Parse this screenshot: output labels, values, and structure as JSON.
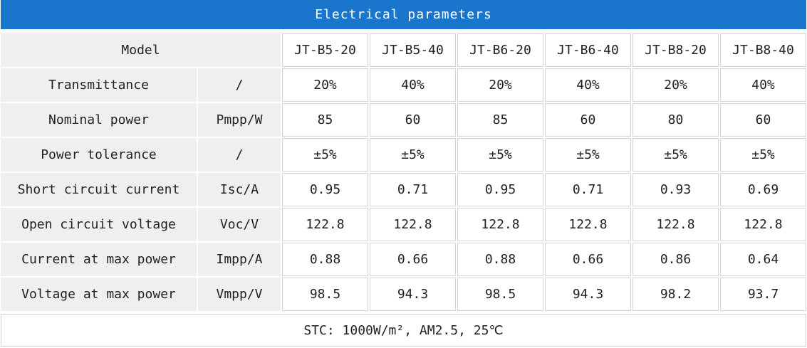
{
  "title": "Electrical parameters",
  "header": {
    "label": "Model",
    "models": [
      "JT-B5-20",
      "JT-B5-40",
      "JT-B6-20",
      "JT-B6-40",
      "JT-B8-20",
      "JT-B8-40"
    ]
  },
  "rows": [
    {
      "label": "Transmittance",
      "unit": "/",
      "values": [
        "20%",
        "40%",
        "20%",
        "40%",
        "20%",
        "40%"
      ]
    },
    {
      "label": "Nominal power",
      "unit": "Pmpp/W",
      "values": [
        "85",
        "60",
        "85",
        "60",
        "80",
        "60"
      ]
    },
    {
      "label": "Power tolerance",
      "unit": "/",
      "values": [
        "±5%",
        "±5%",
        "±5%",
        "±5%",
        "±5%",
        "±5%"
      ]
    },
    {
      "label": "Short circuit current",
      "unit": "Isc/A",
      "values": [
        "0.95",
        "0.71",
        "0.95",
        "0.71",
        "0.93",
        "0.69"
      ]
    },
    {
      "label": "Open circuit voltage",
      "unit": "Voc/V",
      "values": [
        "122.8",
        "122.8",
        "122.8",
        "122.8",
        "122.8",
        "122.8"
      ]
    },
    {
      "label": "Current at max power",
      "unit": "Impp/A",
      "values": [
        "0.88",
        "0.66",
        "0.88",
        "0.66",
        "0.86",
        "0.64"
      ]
    },
    {
      "label": "Voltage at max power",
      "unit": "Vmpp/V",
      "values": [
        "98.5",
        "94.3",
        "98.5",
        "94.3",
        "98.2",
        "93.7"
      ]
    }
  ],
  "footer": "STC: 1000W/m², AM2.5, 25℃"
}
